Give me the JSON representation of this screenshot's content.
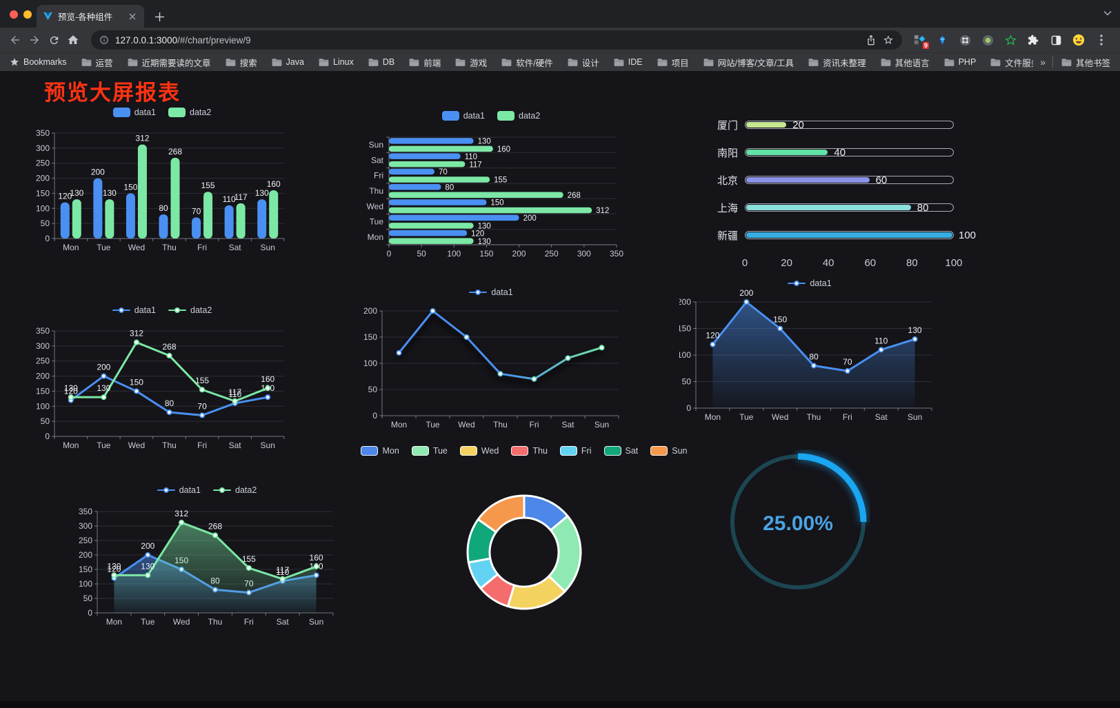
{
  "window": {
    "tab_title": "预览-各种组件",
    "url": {
      "host": "127.0.0.1:3000",
      "path": "/#/chart/preview/9"
    },
    "extension_badge": "9"
  },
  "bookmarks_bar": {
    "bookmarks_label": "Bookmarks",
    "folders": [
      "运营",
      "近期需要读的文章",
      "搜索",
      "Java",
      "Linux",
      "DB",
      "前端",
      "游戏",
      "软件/硬件",
      "设计",
      "IDE",
      "项目",
      "网站/博客/文章/工具",
      "资讯未整理",
      "其他语言",
      "PHP",
      "文件服务器"
    ],
    "overflow_chevron": "»",
    "other_bookmarks_label": "其他书签"
  },
  "page": {
    "title": "预览大屏报表",
    "title_color": "#ff3312",
    "background": "#141419"
  },
  "icons": [
    "favicon-v-logo",
    "tab-close-icon",
    "new-tab-plus-icon",
    "tab-search-chevron-icon",
    "back-arrow-icon",
    "forward-arrow-icon",
    "reload-icon",
    "home-icon",
    "site-info-icon",
    "share-icon",
    "bookmark-star-icon",
    "extensions-badge-icon",
    "gem-icon",
    "command-circle-icon",
    "green-dot-circle-icon",
    "green-star-icon",
    "puzzle-icon",
    "half-square-icon",
    "emoji-face-icon",
    "kebab-menu-icon",
    "folder-icon",
    "bookmarks-star-icon"
  ],
  "chart_data": [
    {
      "id": "c1",
      "type": "bar",
      "categories": [
        "Mon",
        "Tue",
        "Wed",
        "Thu",
        "Fri",
        "Sat",
        "Sun"
      ],
      "series": [
        {
          "name": "data1",
          "color": "#4A90F2",
          "values": [
            120,
            200,
            150,
            80,
            70,
            110,
            130
          ]
        },
        {
          "name": "data2",
          "color": "#7CE8A5",
          "values": [
            130,
            130,
            312,
            268,
            155,
            117,
            160
          ]
        }
      ],
      "ylim": [
        0,
        350
      ],
      "ytick": 50,
      "legend_position": "top",
      "grid": true
    },
    {
      "id": "c2",
      "type": "bar-horizontal",
      "categories": [
        "Mon",
        "Tue",
        "Wed",
        "Thu",
        "Fri",
        "Sat",
        "Sun"
      ],
      "categories_display_order": "bottom-to-top",
      "series": [
        {
          "name": "data1",
          "color": "#4A90F2",
          "values": [
            120,
            200,
            150,
            80,
            70,
            110,
            130
          ]
        },
        {
          "name": "data2",
          "color": "#7CE8A5",
          "values": [
            130,
            130,
            312,
            268,
            155,
            117,
            160
          ]
        }
      ],
      "xlim": [
        0,
        350
      ],
      "xtick": 50,
      "legend_position": "top",
      "grid": true
    },
    {
      "id": "c3",
      "type": "progress-bars",
      "items": [
        {
          "label": "厦门",
          "value": 20,
          "color": "#C6E690"
        },
        {
          "label": "南阳",
          "value": 40,
          "color": "#63E2A7"
        },
        {
          "label": "北京",
          "value": 60,
          "color": "#8B92E8"
        },
        {
          "label": "上海",
          "value": 80,
          "color": "#8BE0DE"
        },
        {
          "label": "新疆",
          "value": 100,
          "color": "#38ADE3"
        }
      ],
      "xlim": [
        0,
        100
      ],
      "xticks": [
        0,
        20,
        40,
        60,
        80,
        100
      ]
    },
    {
      "id": "c4",
      "type": "line",
      "categories": [
        "Mon",
        "Tue",
        "Wed",
        "Thu",
        "Fri",
        "Sat",
        "Sun"
      ],
      "series": [
        {
          "name": "data1",
          "color": "#4A90F2",
          "values": [
            120,
            200,
            150,
            80,
            70,
            110,
            130
          ],
          "show_labels": true
        },
        {
          "name": "data2",
          "color": "#7CE8A5",
          "values": [
            130,
            130,
            312,
            268,
            155,
            117,
            160
          ],
          "show_labels": true
        }
      ],
      "ylim": [
        0,
        350
      ],
      "ytick": 50,
      "legend_position": "top"
    },
    {
      "id": "c5",
      "type": "line",
      "categories": [
        "Mon",
        "Tue",
        "Wed",
        "Thu",
        "Fri",
        "Sat",
        "Sun"
      ],
      "series": [
        {
          "name": "data1",
          "color": "#4A90F2",
          "gradient": [
            "#4A90F2",
            "#6FE5A2"
          ],
          "values": [
            120,
            200,
            150,
            80,
            70,
            110,
            130
          ],
          "show_labels": false,
          "shadow": true
        }
      ],
      "ylim": [
        0,
        200
      ],
      "ytick": 50,
      "legend_position": "top"
    },
    {
      "id": "c6",
      "type": "line",
      "categories": [
        "Mon",
        "Tue",
        "Wed",
        "Thu",
        "Fri",
        "Sat",
        "Sun"
      ],
      "series": [
        {
          "name": "data1",
          "color": "#4A90F2",
          "values": [
            120,
            200,
            150,
            80,
            70,
            110,
            130
          ],
          "show_labels": true,
          "area": true
        }
      ],
      "ylim": [
        0,
        200
      ],
      "ytick": 50,
      "legend_position": "top"
    },
    {
      "id": "c7",
      "type": "line",
      "categories": [
        "Mon",
        "Tue",
        "Wed",
        "Thu",
        "Fri",
        "Sat",
        "Sun"
      ],
      "series": [
        {
          "name": "data1",
          "color": "#4A90F2",
          "values": [
            120,
            200,
            150,
            80,
            70,
            110,
            130
          ],
          "show_labels": true,
          "area": true
        },
        {
          "name": "data2",
          "color": "#7CE8A5",
          "values": [
            130,
            130,
            312,
            268,
            155,
            117,
            160
          ],
          "show_labels": true,
          "area": true
        }
      ],
      "ylim": [
        0,
        350
      ],
      "ytick": 50,
      "legend_position": "top"
    },
    {
      "id": "c8",
      "type": "pie-donut",
      "items": [
        {
          "label": "Mon",
          "value": 120,
          "color": "#4C87E9"
        },
        {
          "label": "Tue",
          "value": 200,
          "color": "#8FE9B2"
        },
        {
          "label": "Wed",
          "value": 150,
          "color": "#F4D25F"
        },
        {
          "label": "Thu",
          "value": 80,
          "color": "#F56C6C"
        },
        {
          "label": "Fri",
          "value": 70,
          "color": "#63D2F2"
        },
        {
          "label": "Sat",
          "value": 110,
          "color": "#10A77B"
        },
        {
          "label": "Sun",
          "value": 130,
          "color": "#F6984C"
        }
      ],
      "legend_position": "top",
      "border_color": "#ffffff"
    },
    {
      "id": "c9",
      "type": "gauge",
      "value": 25,
      "percent_label": "25.00%",
      "color": "#1BA6F2",
      "track_color": "#1C4651",
      "text_color": "#4AA3E4"
    }
  ]
}
